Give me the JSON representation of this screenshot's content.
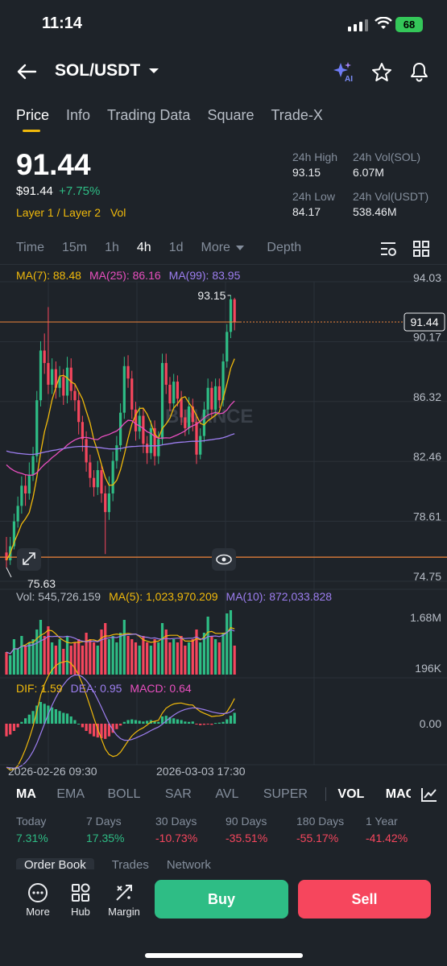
{
  "status": {
    "time": "11:14",
    "battery": "68"
  },
  "header": {
    "pair": "SOL/USDT",
    "ai_badge": "AI",
    "icons": [
      "back-arrow-icon",
      "chevron-down-icon",
      "ai-sparkle-icon",
      "star-icon",
      "bell-icon"
    ]
  },
  "tabs": [
    "Price",
    "Info",
    "Trading Data",
    "Square",
    "Trade-X"
  ],
  "price": {
    "last": "91.44",
    "usd": "$91.44",
    "change": "+7.75%",
    "tags": "Layer 1 / Layer 2",
    "tag2": "Vol",
    "high_label": "24h High",
    "high": "93.15",
    "low_label": "24h Low",
    "low": "84.17",
    "vol_sol_label": "24h Vol(SOL)",
    "vol_sol": "6.07M",
    "vol_usdt_label": "24h Vol(USDT)",
    "vol_usdt": "538.46M"
  },
  "timeframes": {
    "items": [
      "Time",
      "15m",
      "1h",
      "4h",
      "1d",
      "More"
    ],
    "active": "4h",
    "depth": "Depth"
  },
  "ma": {
    "ma7": "MA(7): 88.48",
    "ma25": "MA(25): 86.16",
    "ma99": "MA(99): 83.95"
  },
  "volume": {
    "vol": "Vol: 545,726.159",
    "ma5": "MA(5): 1,023,970.209",
    "ma10": "MA(10): 872,033.828"
  },
  "macd": {
    "dif": "DIF: 1.59",
    "dea": "DEA: 0.95",
    "macd": "MACD: 0.64"
  },
  "dates": [
    "2026-02-26 09:30",
    "2026-03-03 17:30"
  ],
  "watermark": "BINANCE",
  "chart_data": {
    "type": "candlestick",
    "y_ticks": [
      94.03,
      90.17,
      86.32,
      82.46,
      78.61,
      74.75
    ],
    "ylim": [
      74.75,
      94.03
    ],
    "last_price": 91.44,
    "reference_line": 76.3,
    "high_label": "93.15",
    "low_label": "75.63",
    "current_price_label": "91.44",
    "volume_ticks": [
      "1.68M",
      "196K"
    ],
    "macd_ticks": [
      "0.00"
    ],
    "up_color": "#2ebd85",
    "down_color": "#f6465d",
    "ma7_color": "#f0b90b",
    "ma25_color": "#e84fbf",
    "ma99_color": "#9d7ef0",
    "candles": [
      [
        76.6,
        76.1,
        77.6,
        75.63
      ],
      [
        76.1,
        77.0,
        77.6,
        75.8
      ],
      [
        77.0,
        78.6,
        79.1,
        76.8
      ],
      [
        78.6,
        79.6,
        80.2,
        78.2
      ],
      [
        79.6,
        80.9,
        81.5,
        79.1
      ],
      [
        80.9,
        80.4,
        81.6,
        79.6
      ],
      [
        80.4,
        81.6,
        82.4,
        80.0
      ],
      [
        81.6,
        82.8,
        83.4,
        81.2
      ],
      [
        82.8,
        86.4,
        87.0,
        82.4
      ],
      [
        86.4,
        89.6,
        90.2,
        86.0
      ],
      [
        89.6,
        88.8,
        90.7,
        88.1
      ],
      [
        88.8,
        87.4,
        92.4,
        86.8
      ],
      [
        87.4,
        88.4,
        89.1,
        86.8
      ],
      [
        88.4,
        87.2,
        88.9,
        86.5
      ],
      [
        87.2,
        87.9,
        88.6,
        86.6
      ],
      [
        87.9,
        86.7,
        88.4,
        86.1
      ],
      [
        86.7,
        88.5,
        89.2,
        86.2
      ],
      [
        88.5,
        87.0,
        89.1,
        86.4
      ],
      [
        87.0,
        86.4,
        87.5,
        85.7
      ],
      [
        86.4,
        85.0,
        86.9,
        84.2
      ],
      [
        85.0,
        83.9,
        85.4,
        83.1
      ],
      [
        83.9,
        82.4,
        84.4,
        81.8
      ],
      [
        82.4,
        81.4,
        82.9,
        80.8
      ],
      [
        81.4,
        80.8,
        81.9,
        80.2
      ],
      [
        80.8,
        81.9,
        82.5,
        80.3
      ],
      [
        81.9,
        80.4,
        82.3,
        79.8
      ],
      [
        80.4,
        79.2,
        80.9,
        76.5
      ],
      [
        79.2,
        80.4,
        81.5,
        78.7
      ],
      [
        80.4,
        82.5,
        83.1,
        79.9
      ],
      [
        82.5,
        83.5,
        84.1,
        82.0
      ],
      [
        83.5,
        85.6,
        86.2,
        83.1
      ],
      [
        85.6,
        88.6,
        89.2,
        85.2
      ],
      [
        88.6,
        87.8,
        89.3,
        87.2
      ],
      [
        87.8,
        85.8,
        88.3,
        85.2
      ],
      [
        85.8,
        84.4,
        86.3,
        83.8
      ],
      [
        84.4,
        85.4,
        86.0,
        83.9
      ],
      [
        85.4,
        83.6,
        85.9,
        83.0
      ],
      [
        83.6,
        83.0,
        84.1,
        82.3
      ],
      [
        83.0,
        84.6,
        85.1,
        82.6
      ],
      [
        84.6,
        82.8,
        85.1,
        82.2
      ],
      [
        82.8,
        83.9,
        84.4,
        82.3
      ],
      [
        83.9,
        88.8,
        89.4,
        83.5
      ],
      [
        88.8,
        87.4,
        89.4,
        86.8
      ],
      [
        87.4,
        86.2,
        87.9,
        85.7
      ],
      [
        86.2,
        87.6,
        88.1,
        85.8
      ],
      [
        87.6,
        86.5,
        88.0,
        86.0
      ],
      [
        86.5,
        85.3,
        87.0,
        84.8
      ],
      [
        85.3,
        84.6,
        85.8,
        84.1
      ],
      [
        84.6,
        86.0,
        86.6,
        84.2
      ],
      [
        86.0,
        85.0,
        86.5,
        84.4
      ],
      [
        85.0,
        82.9,
        85.5,
        82.3
      ],
      [
        82.9,
        84.1,
        84.6,
        82.6
      ],
      [
        84.1,
        85.8,
        86.3,
        83.7
      ],
      [
        85.8,
        87.2,
        87.8,
        85.4
      ],
      [
        87.2,
        85.8,
        87.6,
        85.2
      ],
      [
        85.8,
        87.3,
        87.8,
        85.4
      ],
      [
        87.3,
        86.4,
        87.8,
        85.9
      ],
      [
        86.4,
        88.9,
        89.4,
        86.0
      ],
      [
        88.9,
        90.8,
        91.3,
        88.5
      ],
      [
        90.8,
        92.9,
        93.15,
        90.4
      ],
      [
        92.9,
        91.44,
        93.0,
        90.9
      ]
    ],
    "volume_bars": [
      0.35,
      0.3,
      0.55,
      0.4,
      0.6,
      0.45,
      0.5,
      0.55,
      0.7,
      0.85,
      0.6,
      0.75,
      0.5,
      0.45,
      0.55,
      0.4,
      0.6,
      0.45,
      0.5,
      0.55,
      0.45,
      0.65,
      0.55,
      0.5,
      0.45,
      0.7,
      0.8,
      0.55,
      0.6,
      0.5,
      0.65,
      0.85,
      0.6,
      0.55,
      0.5,
      0.45,
      0.6,
      0.5,
      0.45,
      0.55,
      0.5,
      0.8,
      0.7,
      0.5,
      0.55,
      0.5,
      0.6,
      0.45,
      0.5,
      0.55,
      0.7,
      0.5,
      0.65,
      0.9,
      0.6,
      0.55,
      0.5,
      0.65,
      0.95,
      1.0,
      0.45
    ],
    "macd_hist": [
      -0.35,
      -0.3,
      -0.2,
      -0.1,
      0.05,
      0.15,
      0.25,
      0.35,
      0.5,
      0.6,
      0.55,
      0.5,
      0.45,
      0.4,
      0.35,
      0.3,
      0.28,
      0.2,
      0.1,
      0.0,
      -0.1,
      -0.2,
      -0.28,
      -0.35,
      -0.38,
      -0.4,
      -0.42,
      -0.35,
      -0.25,
      -0.15,
      -0.05,
      0.05,
      0.1,
      0.12,
      0.1,
      0.08,
      0.06,
      0.08,
      0.1,
      0.06,
      0.05,
      0.2,
      0.22,
      0.18,
      0.15,
      0.12,
      0.1,
      0.06,
      0.05,
      0.06,
      -0.02,
      -0.04,
      -0.03,
      -0.02,
      -0.03,
      0.02,
      0.03,
      0.05,
      0.12,
      0.22,
      0.3
    ]
  },
  "indicators": {
    "items": [
      "MA",
      "EMA",
      "BOLL",
      "SAR",
      "AVL",
      "SUPER",
      "VOL",
      "MACD",
      "K"
    ],
    "active": [
      "MA",
      "VOL",
      "MACD"
    ]
  },
  "performance": [
    {
      "label": "Today",
      "value": "7.31%",
      "color": "#2ebd85"
    },
    {
      "label": "7 Days",
      "value": "17.35%",
      "color": "#2ebd85"
    },
    {
      "label": "30 Days",
      "value": "-10.73%",
      "color": "#f6465d"
    },
    {
      "label": "90 Days",
      "value": "-35.51%",
      "color": "#f6465d"
    },
    {
      "label": "180 Days",
      "value": "-55.17%",
      "color": "#f6465d"
    },
    {
      "label": "1 Year",
      "value": "-41.42%",
      "color": "#f6465d"
    }
  ],
  "lower_tabs": [
    "Order Book",
    "Trades",
    "Network"
  ],
  "bottom_nav": {
    "more": "More",
    "hub": "Hub",
    "margin": "Margin",
    "buy": "Buy",
    "sell": "Sell"
  }
}
